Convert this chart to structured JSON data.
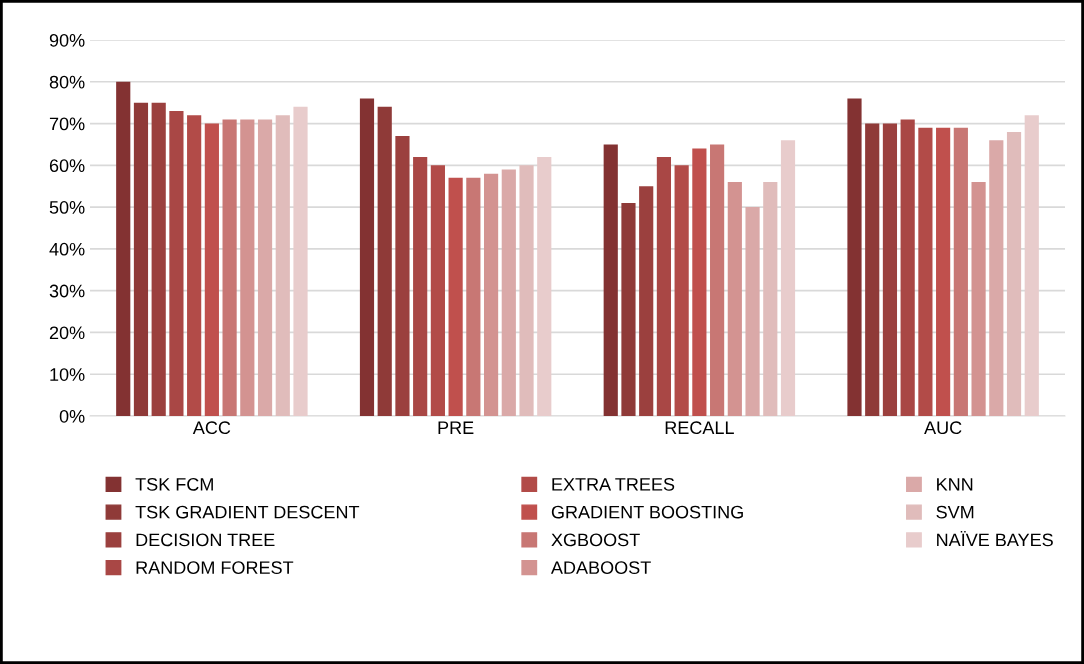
{
  "chart_data": {
    "type": "bar",
    "categories": [
      "ACC",
      "PRE",
      "RECALL",
      "AUC"
    ],
    "series": [
      {
        "name": "TSK FCM",
        "color": "#833232",
        "values": [
          80,
          76,
          65,
          76
        ]
      },
      {
        "name": "TSK GRADIENT DESCENT",
        "color": "#8f3a38",
        "values": [
          75,
          74,
          51,
          70
        ]
      },
      {
        "name": "DECISION TREE",
        "color": "#9b403e",
        "values": [
          75,
          67,
          55,
          70
        ]
      },
      {
        "name": "RANDOM FOREST",
        "color": "#a94745",
        "values": [
          73,
          62,
          62,
          71
        ]
      },
      {
        "name": "EXTRA TREES",
        "color": "#b24b48",
        "values": [
          72,
          60,
          60,
          69
        ]
      },
      {
        "name": "GRADIENT BOOSTING",
        "color": "#c0504d",
        "values": [
          70,
          57,
          64,
          69
        ]
      },
      {
        "name": "XGBOOST",
        "color": "#c87774",
        "values": [
          71,
          57,
          65,
          69
        ]
      },
      {
        "name": "ADABOOST",
        "color": "#d39391",
        "values": [
          71,
          58,
          56,
          56
        ]
      },
      {
        "name": "KNN",
        "color": "#daa9a8",
        "values": [
          71,
          59,
          50,
          66
        ]
      },
      {
        "name": "SVM",
        "color": "#e0bcbb",
        "values": [
          72,
          60,
          56,
          68
        ]
      },
      {
        "name": "NAÏVE BAYES",
        "color": "#e8cccc",
        "values": [
          74,
          62,
          66,
          72
        ]
      }
    ],
    "ylim": [
      0,
      90
    ],
    "yticks": [
      {
        "value": 0,
        "label": "0%"
      },
      {
        "value": 10,
        "label": "10%"
      },
      {
        "value": 20,
        "label": "20%"
      },
      {
        "value": 30,
        "label": "30%"
      },
      {
        "value": 40,
        "label": "40%"
      },
      {
        "value": 50,
        "label": "50%"
      },
      {
        "value": 60,
        "label": "60%"
      },
      {
        "value": 70,
        "label": "70%"
      },
      {
        "value": 80,
        "label": "80%"
      },
      {
        "value": 90,
        "label": "90%"
      }
    ],
    "grid": "y",
    "legend": "bottom"
  }
}
